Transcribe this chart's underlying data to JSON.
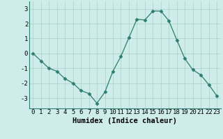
{
  "x": [
    0,
    1,
    2,
    3,
    4,
    5,
    6,
    7,
    8,
    9,
    10,
    11,
    12,
    13,
    14,
    15,
    16,
    17,
    18,
    19,
    20,
    21,
    22,
    23
  ],
  "y": [
    0,
    -0.5,
    -1.0,
    -1.2,
    -1.7,
    -2.0,
    -2.5,
    -2.7,
    -3.35,
    -2.6,
    -1.2,
    -0.2,
    1.05,
    2.3,
    2.25,
    2.85,
    2.85,
    2.2,
    0.9,
    -0.35,
    -1.1,
    -1.45,
    -2.1,
    -2.85
  ],
  "line_color": "#2e7d6e",
  "marker": "D",
  "marker_size": 2.5,
  "bg_color": "#cdecea",
  "grid_color": "#b0d4d0",
  "xlabel": "Humidex (Indice chaleur)",
  "xlim": [
    -0.5,
    23.5
  ],
  "ylim": [
    -3.7,
    3.5
  ],
  "yticks": [
    -3,
    -2,
    -1,
    0,
    1,
    2,
    3
  ],
  "xticks": [
    0,
    1,
    2,
    3,
    4,
    5,
    6,
    7,
    8,
    9,
    10,
    11,
    12,
    13,
    14,
    15,
    16,
    17,
    18,
    19,
    20,
    21,
    22,
    23
  ],
  "xlabel_fontsize": 7.5,
  "tick_fontsize": 6.5
}
